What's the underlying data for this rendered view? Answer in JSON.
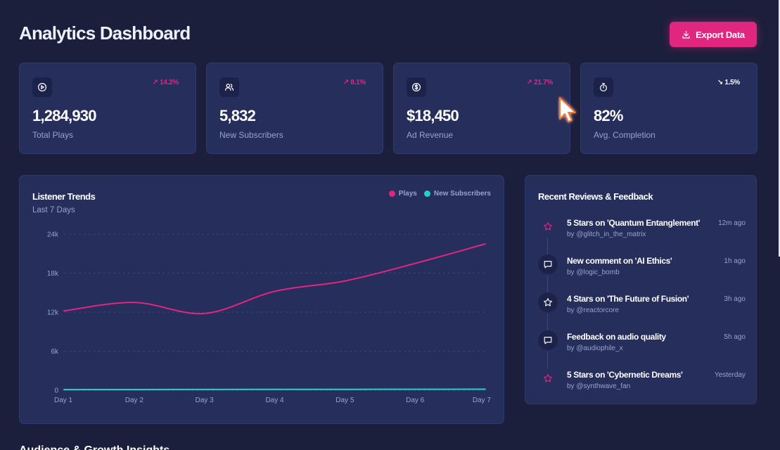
{
  "header": {
    "title": "Analytics Dashboard",
    "export_label": "Export Data"
  },
  "stats": [
    {
      "icon": "play-circle-icon",
      "value": "1,284,930",
      "label": "Total Plays",
      "trend": "14.2%",
      "direction": "up"
    },
    {
      "icon": "users-icon",
      "value": "5,832",
      "label": "New Subscribers",
      "trend": "8.1%",
      "direction": "up"
    },
    {
      "icon": "dollar-circle-icon",
      "value": "$18,450",
      "label": "Ad Revenue",
      "trend": "21.7%",
      "direction": "up"
    },
    {
      "icon": "stopwatch-icon",
      "value": "82%",
      "label": "Avg. Completion",
      "trend": "1.5%",
      "direction": "down"
    }
  ],
  "chart_panel": {
    "title": "Listener Trends",
    "subtitle": "Last 7 Days"
  },
  "chart_data": {
    "type": "line",
    "title": "Listener Trends",
    "subtitle": "Last 7 Days",
    "categories": [
      "Day 1",
      "Day 2",
      "Day 3",
      "Day 4",
      "Day 5",
      "Day 6",
      "Day 7"
    ],
    "series": [
      {
        "name": "Plays",
        "color": "#e0267f",
        "values": [
          12200,
          13500,
          11800,
          15200,
          16800,
          19500,
          22500
        ]
      },
      {
        "name": "New Subscribers",
        "color": "#22d3c5",
        "values": [
          100,
          110,
          120,
          130,
          140,
          150,
          160
        ]
      }
    ],
    "yticks": [
      "0",
      "6k",
      "12k",
      "18k",
      "24k"
    ],
    "ytick_values": [
      0,
      6000,
      12000,
      18000,
      24000
    ],
    "ylim": [
      0,
      24000
    ],
    "grid": true,
    "legend": "top-right"
  },
  "reviews_panel": {
    "title": "Recent Reviews & Feedback",
    "items": [
      {
        "icon": "star-icon",
        "title": "5 Stars on 'Quantum Entanglement'",
        "by": "by @glitch_in_the_matrix",
        "time": "12m ago",
        "accent": true
      },
      {
        "icon": "message-icon",
        "title": "New comment on 'AI Ethics'",
        "by": "by @logic_bomb",
        "time": "1h ago",
        "accent": false
      },
      {
        "icon": "star-icon",
        "title": "4 Stars on 'The Future of Fusion'",
        "by": "by @reactorcore",
        "time": "3h ago",
        "accent": false
      },
      {
        "icon": "message-icon",
        "title": "Feedback on audio quality",
        "by": "by @audiophile_x",
        "time": "5h ago",
        "accent": false
      },
      {
        "icon": "star-icon",
        "title": "5 Stars on 'Cybernetic Dreams'",
        "by": "by @synthwave_fan",
        "time": "Yesterday",
        "accent": true
      }
    ]
  },
  "bottom_section": {
    "title": "Audience & Growth Insights"
  },
  "colors": {
    "background": "#1b1f3b",
    "card": "#262e5c",
    "accent": "#e0267f",
    "teal": "#22d3c5",
    "muted": "#9aa2cc"
  }
}
